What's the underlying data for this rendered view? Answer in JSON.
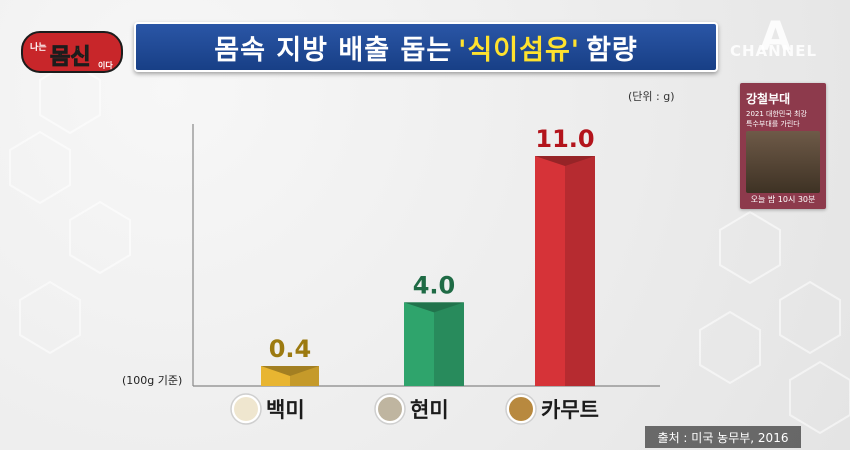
{
  "title": {
    "prefix": "몸속 지방 배출 돕는",
    "highlight": "'식이섬유'",
    "suffix": "함량"
  },
  "show_logo": {
    "small_left": "나는",
    "main": "몸신",
    "small_right": "이다"
  },
  "channel_logo": {
    "letter": "A",
    "text": "CHANNEL"
  },
  "unit_note": "(단위 : g)",
  "baseline_note": "(100g 기준)",
  "source": "출처 : 미국 농무부, 2016",
  "promo": {
    "title": "강철부대",
    "line1": "2021 대한민국 최강",
    "line2": "특수부대를 가린다",
    "time": "오늘 밤 10시 30분"
  },
  "colors": {
    "title_bg": "#1f4c9a",
    "highlight": "#ffe22e",
    "bar_white_rice": "#e8b531",
    "bar_brown_rice": "#2fa46c",
    "bar_kamut": "#d63338",
    "label_white_rice": "#9c7a10",
    "label_brown_rice": "#1f6b45",
    "label_kamut": "#b3141c"
  },
  "chart_data": {
    "type": "bar",
    "categories": [
      "백미",
      "현미",
      "카무트"
    ],
    "values": [
      0.4,
      4.0,
      11.0
    ],
    "data_labels": [
      "0.4",
      "4.0",
      "11.0"
    ],
    "icons": [
      "white-rice-icon",
      "brown-rice-icon",
      "kamut-grain-icon"
    ],
    "ylim": [
      0,
      11.0
    ],
    "grid": false,
    "legend": "none"
  }
}
